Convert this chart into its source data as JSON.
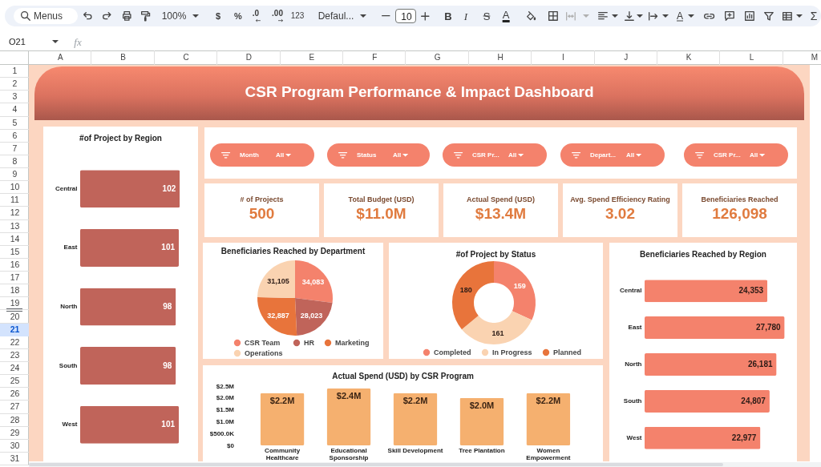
{
  "chart_data": [
    {
      "type": "other",
      "annotations": [
        "Menus",
        "100%",
        "$",
        "%",
        ".0",
        ".00",
        "123",
        "Defaul...",
        "10",
        "B",
        "I",
        "S",
        "A",
        "A",
        "Σ"
      ]
    },
    {
      "type": "other",
      "annotations": [
        "O21",
        "fx"
      ]
    },
    {
      "type": "heatmap",
      "categories": [
        "A",
        "B",
        "C",
        "D",
        "E",
        "F",
        "G",
        "H",
        "I",
        "J",
        "K",
        "L",
        "M"
      ],
      "y_categories": [
        "1",
        "2",
        "3",
        "4",
        "5",
        "6",
        "7",
        "8",
        "9",
        "10",
        "11",
        "12",
        "13",
        "14",
        "15",
        "16",
        "17",
        "18",
        "19",
        "20",
        "21",
        "22",
        "23",
        "24",
        "25",
        "26",
        "27",
        "28",
        "29",
        "30",
        "31"
      ],
      "cells": [
        [
          null,
          null,
          null,
          null,
          null,
          null,
          null,
          null,
          null,
          null,
          null,
          null,
          null
        ],
        [
          null,
          null,
          null,
          null,
          null,
          null,
          null,
          null,
          null,
          null,
          null,
          null,
          null
        ],
        [
          null,
          null,
          null,
          null,
          null,
          null,
          null,
          null,
          null,
          null,
          null,
          null,
          null
        ],
        [
          null,
          null,
          null,
          null,
          null,
          null,
          null,
          null,
          null,
          null,
          null,
          null,
          null
        ],
        [
          null,
          null,
          null,
          null,
          null,
          null,
          null,
          null,
          null,
          null,
          null,
          null,
          null
        ],
        [
          null,
          null,
          null,
          null,
          null,
          null,
          null,
          null,
          null,
          null,
          null,
          null,
          null
        ],
        [
          null,
          null,
          null,
          null,
          null,
          null,
          null,
          null,
          null,
          null,
          null,
          null,
          null
        ],
        [
          null,
          null,
          null,
          null,
          null,
          null,
          null,
          null,
          null,
          null,
          null,
          null,
          null
        ],
        [
          null,
          null,
          null,
          null,
          null,
          null,
          null,
          null,
          null,
          null,
          null,
          null,
          null
        ],
        [
          null,
          null,
          null,
          null,
          null,
          null,
          null,
          null,
          null,
          null,
          null,
          null,
          null
        ],
        [
          null,
          null,
          null,
          null,
          null,
          null,
          null,
          null,
          null,
          null,
          null,
          null,
          null
        ],
        [
          null,
          null,
          null,
          null,
          null,
          null,
          null,
          null,
          null,
          null,
          null,
          null,
          null
        ],
        [
          null,
          null,
          null,
          null,
          null,
          null,
          null,
          null,
          null,
          null,
          null,
          null,
          null
        ],
        [
          null,
          null,
          null,
          null,
          null,
          null,
          null,
          null,
          null,
          null,
          null,
          null,
          null
        ],
        [
          null,
          null,
          null,
          null,
          null,
          null,
          null,
          null,
          null,
          null,
          null,
          null,
          null
        ],
        [
          null,
          null,
          null,
          null,
          null,
          null,
          null,
          null,
          null,
          null,
          null,
          null,
          null
        ],
        [
          null,
          null,
          null,
          null,
          null,
          null,
          null,
          null,
          null,
          null,
          null,
          null,
          null
        ],
        [
          null,
          null,
          null,
          null,
          null,
          null,
          null,
          null,
          null,
          null,
          null,
          null,
          null
        ],
        [
          null,
          null,
          null,
          null,
          null,
          null,
          null,
          null,
          null,
          null,
          null,
          null,
          null
        ],
        [
          null,
          null,
          null,
          null,
          null,
          null,
          null,
          null,
          null,
          null,
          null,
          null,
          null
        ],
        [
          null,
          null,
          null,
          null,
          null,
          null,
          null,
          null,
          null,
          null,
          null,
          null,
          null
        ],
        [
          null,
          null,
          null,
          null,
          null,
          null,
          null,
          null,
          null,
          null,
          null,
          null,
          null
        ],
        [
          null,
          null,
          null,
          null,
          null,
          null,
          null,
          null,
          null,
          null,
          null,
          null,
          null
        ],
        [
          null,
          null,
          null,
          null,
          null,
          null,
          null,
          null,
          null,
          null,
          null,
          null,
          null
        ],
        [
          null,
          null,
          null,
          null,
          null,
          null,
          null,
          null,
          null,
          null,
          null,
          null,
          null
        ],
        [
          null,
          null,
          null,
          null,
          null,
          null,
          null,
          null,
          null,
          null,
          null,
          null,
          null
        ],
        [
          null,
          null,
          null,
          null,
          null,
          null,
          null,
          null,
          null,
          null,
          null,
          null,
          null
        ],
        [
          null,
          null,
          null,
          null,
          null,
          null,
          null,
          null,
          null,
          null,
          null,
          null,
          null
        ],
        [
          null,
          null,
          null,
          null,
          null,
          null,
          null,
          null,
          null,
          null,
          null,
          null,
          null
        ],
        [
          null,
          null,
          null,
          null,
          null,
          null,
          null,
          null,
          null,
          null,
          null,
          null,
          null
        ],
        [
          null,
          null,
          null,
          null,
          null,
          null,
          null,
          null,
          null,
          null,
          null,
          null,
          null
        ]
      ]
    },
    {
      "type": "other",
      "title": "CSR Program Performance & Impact Dashboard"
    },
    {
      "type": "bar",
      "title": "#of Project by Region",
      "orientation": "horizontal",
      "categories": [
        "Central",
        "East",
        "North",
        "South",
        "West"
      ],
      "values": [
        102,
        101,
        98,
        98,
        101
      ],
      "color": "#c0645a",
      "data_labels": true,
      "tick_labels": "y"
    },
    {
      "type": "other",
      "annotations": [
        "Month",
        "All",
        "Status",
        "All",
        "CSR Pr...",
        "All",
        "Depart...",
        "All",
        "CSR Pr...",
        "All"
      ]
    },
    {
      "type": "other",
      "annotations": [
        "# of Projects",
        "500",
        "Total Budget (USD)",
        "$11.0M",
        "Actual Spend (USD)",
        "$13.4M",
        "Avg. Spend Efficiency Rating",
        "3.02",
        "Beneficiaries Reached",
        "126,098"
      ]
    },
    {
      "type": "pie",
      "title": "Beneficiaries Reached by Department",
      "categories": [
        "CSR Team",
        "HR",
        "Marketing",
        "Operations"
      ],
      "values": [
        34083,
        28023,
        32887,
        31105
      ],
      "value_labels": [
        "34,083",
        "28,023",
        "32,887",
        "31,105"
      ],
      "colors": [
        "#f4826c",
        "#c0645a",
        "#e8743b",
        "#fad3b1"
      ],
      "legend": "bottom"
    },
    {
      "type": "donut",
      "title": "#of Project by Status",
      "categories": [
        "Completed",
        "In Progress",
        "Planned"
      ],
      "values": [
        159,
        161,
        180
      ],
      "colors": [
        "#f4826c",
        "#fad3b1",
        "#e8743b"
      ],
      "data_labels": true,
      "legend": "bottom"
    },
    {
      "type": "bar",
      "title": "Beneficiaries Reached by Region",
      "orientation": "horizontal",
      "categories": [
        "Central",
        "East",
        "North",
        "South",
        "West"
      ],
      "values": [
        24353,
        27780,
        26181,
        24807,
        22977
      ],
      "value_labels": [
        "24,353",
        "27,780",
        "26,181",
        "24,807",
        "22,977"
      ],
      "color": "#f4826c",
      "tick_labels": "y"
    },
    {
      "type": "bar",
      "title": "Actual Spend (USD) by CSR Program",
      "categories": [
        "Community Healthcare",
        "Educational Sponsorship",
        "Skill Development",
        "Tree Plantation",
        "Women Empowerment"
      ],
      "values": [
        2200000,
        2400000,
        2200000,
        2000000,
        2200000
      ],
      "value_labels": [
        "$2.2M",
        "$2.4M",
        "$2.2M",
        "$2.0M",
        "$2.2M"
      ],
      "color": "#f5b06f",
      "ylim": [
        0,
        2500000
      ],
      "yticks": [
        {
          "value": 0,
          "label": "$0"
        },
        {
          "value": 500000,
          "label": "$500.0K"
        },
        {
          "value": 1000000,
          "label": "$1.0M"
        },
        {
          "value": 1500000,
          "label": "$1.5M"
        },
        {
          "value": 2000000,
          "label": "$2.0M"
        },
        {
          "value": 2500000,
          "label": "$2.5M"
        }
      ]
    }
  ]
}
